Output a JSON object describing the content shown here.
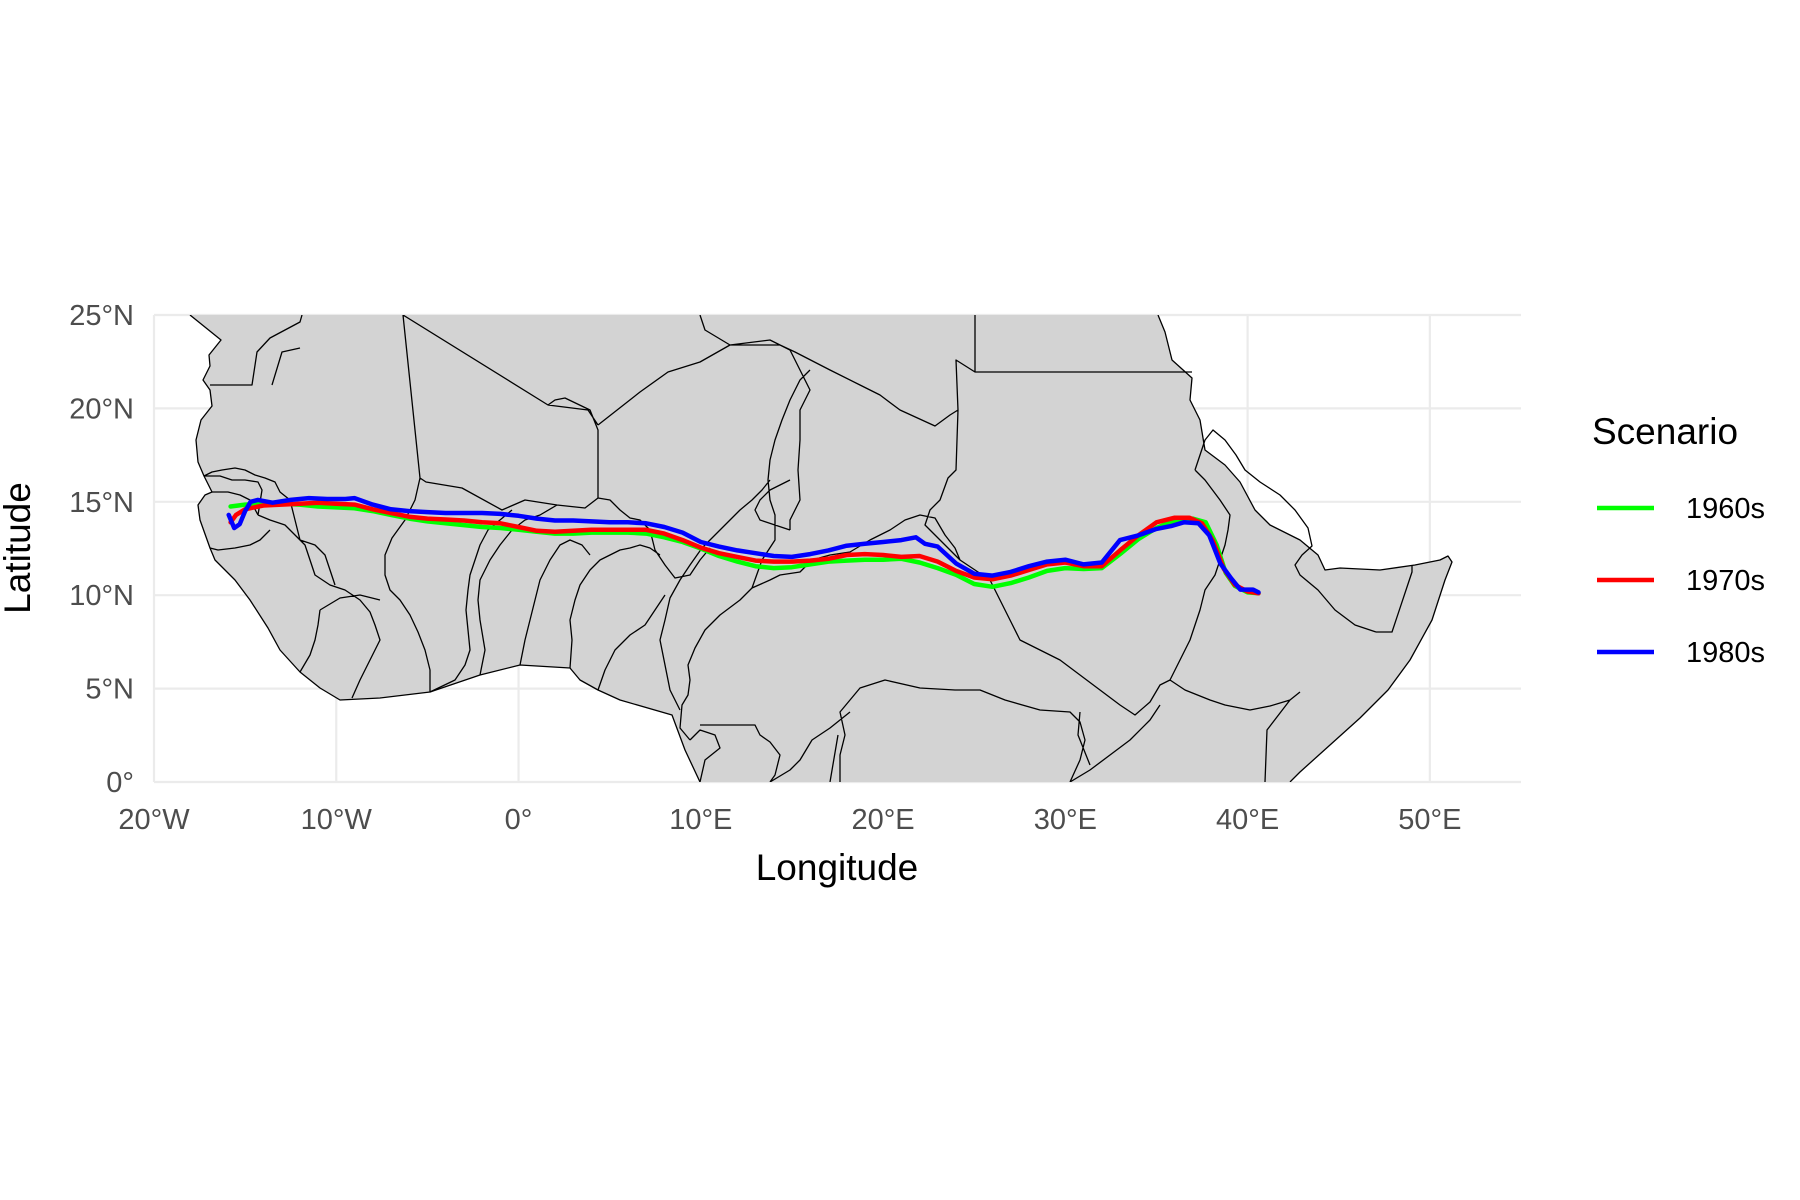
{
  "chart_data": {
    "type": "map",
    "title": "",
    "xlabel": "Longitude",
    "ylabel": "Latitude",
    "xlim": [
      -20,
      55
    ],
    "ylim": [
      0,
      25
    ],
    "x_ticks": [
      {
        "value": -20,
        "label": "20°W"
      },
      {
        "value": -10,
        "label": "10°W"
      },
      {
        "value": 0,
        "label": "0°"
      },
      {
        "value": 10,
        "label": "10°E"
      },
      {
        "value": 20,
        "label": "20°E"
      },
      {
        "value": 30,
        "label": "30°E"
      },
      {
        "value": 40,
        "label": "40°E"
      },
      {
        "value": 50,
        "label": "50°E"
      }
    ],
    "y_ticks": [
      {
        "value": 0,
        "label": "0°"
      },
      {
        "value": 5,
        "label": "5°N"
      },
      {
        "value": 10,
        "label": "10°N"
      },
      {
        "value": 15,
        "label": "15°N"
      },
      {
        "value": 20,
        "label": "20°N"
      },
      {
        "value": 25,
        "label": "25°N"
      }
    ],
    "grid": true,
    "basemap": {
      "land_color": "#d3d3d3",
      "border_color": "#000000"
    },
    "legend": {
      "title": "Scenario",
      "position": "right"
    },
    "series": [
      {
        "name": "1960s",
        "color": "#00ff00",
        "points": [
          [
            -15.8,
            14.75
          ],
          [
            -15,
            14.85
          ],
          [
            -14,
            14.9
          ],
          [
            -13,
            14.9
          ],
          [
            -12,
            14.85
          ],
          [
            -11,
            14.75
          ],
          [
            -10,
            14.7
          ],
          [
            -9,
            14.65
          ],
          [
            -8,
            14.5
          ],
          [
            -7,
            14.3
          ],
          [
            -6,
            14.1
          ],
          [
            -5,
            13.95
          ],
          [
            -4,
            13.85
          ],
          [
            -3,
            13.75
          ],
          [
            -2,
            13.65
          ],
          [
            -1,
            13.6
          ],
          [
            0,
            13.5
          ],
          [
            1,
            13.4
          ],
          [
            2,
            13.3
          ],
          [
            3,
            13.3
          ],
          [
            4,
            13.35
          ],
          [
            5,
            13.35
          ],
          [
            6,
            13.35
          ],
          [
            7,
            13.3
          ],
          [
            8,
            13.1
          ],
          [
            9,
            12.85
          ],
          [
            10,
            12.5
          ],
          [
            11,
            12.1
          ],
          [
            12,
            11.8
          ],
          [
            13,
            11.55
          ],
          [
            14,
            11.45
          ],
          [
            15,
            11.5
          ],
          [
            16,
            11.65
          ],
          [
            17,
            11.8
          ],
          [
            18,
            11.85
          ],
          [
            19,
            11.9
          ],
          [
            20,
            11.9
          ],
          [
            21,
            11.95
          ],
          [
            22,
            11.75
          ],
          [
            23,
            11.45
          ],
          [
            24,
            11.1
          ],
          [
            25,
            10.6
          ],
          [
            26,
            10.45
          ],
          [
            27,
            10.65
          ],
          [
            28,
            10.95
          ],
          [
            29,
            11.3
          ],
          [
            30,
            11.45
          ],
          [
            31,
            11.4
          ],
          [
            32,
            11.45
          ],
          [
            33,
            12.2
          ],
          [
            34,
            13.0
          ],
          [
            35,
            13.6
          ],
          [
            36,
            14.0
          ],
          [
            37,
            14.1
          ],
          [
            37.7,
            13.9
          ],
          [
            38.3,
            12.7
          ],
          [
            38.8,
            11.2
          ],
          [
            39.3,
            10.5
          ],
          [
            40,
            10.15
          ],
          [
            40.6,
            10.1
          ]
        ]
      },
      {
        "name": "1970s",
        "color": "#ff0000",
        "points": [
          [
            -15.8,
            13.9
          ],
          [
            -15.5,
            14.3
          ],
          [
            -15,
            14.6
          ],
          [
            -14,
            14.8
          ],
          [
            -13,
            14.85
          ],
          [
            -12,
            14.9
          ],
          [
            -11,
            14.95
          ],
          [
            -10,
            14.9
          ],
          [
            -9,
            14.85
          ],
          [
            -8,
            14.6
          ],
          [
            -7,
            14.4
          ],
          [
            -6,
            14.2
          ],
          [
            -5,
            14.1
          ],
          [
            -4,
            14.05
          ],
          [
            -3,
            14.0
          ],
          [
            -2,
            13.9
          ],
          [
            -1,
            13.85
          ],
          [
            0,
            13.65
          ],
          [
            1,
            13.45
          ],
          [
            2,
            13.4
          ],
          [
            3,
            13.45
          ],
          [
            4,
            13.5
          ],
          [
            5,
            13.5
          ],
          [
            6,
            13.5
          ],
          [
            7,
            13.5
          ],
          [
            8,
            13.3
          ],
          [
            9,
            12.95
          ],
          [
            10,
            12.55
          ],
          [
            11,
            12.25
          ],
          [
            12,
            12.05
          ],
          [
            13,
            11.85
          ],
          [
            14,
            11.8
          ],
          [
            15,
            11.8
          ],
          [
            16,
            11.85
          ],
          [
            17,
            11.95
          ],
          [
            18,
            12.15
          ],
          [
            19,
            12.2
          ],
          [
            20,
            12.15
          ],
          [
            21,
            12.05
          ],
          [
            22,
            12.1
          ],
          [
            23,
            11.8
          ],
          [
            24,
            11.3
          ],
          [
            25,
            10.95
          ],
          [
            26,
            10.85
          ],
          [
            27,
            11.05
          ],
          [
            28,
            11.35
          ],
          [
            29,
            11.65
          ],
          [
            30,
            11.75
          ],
          [
            31,
            11.55
          ],
          [
            32,
            11.55
          ],
          [
            33,
            12.4
          ],
          [
            34,
            13.2
          ],
          [
            35,
            13.9
          ],
          [
            36,
            14.15
          ],
          [
            36.8,
            14.15
          ],
          [
            37.5,
            13.85
          ],
          [
            38.1,
            12.9
          ],
          [
            38.7,
            11.4
          ],
          [
            39.3,
            10.55
          ],
          [
            40,
            10.2
          ],
          [
            40.6,
            10.1
          ]
        ]
      },
      {
        "name": "1980s",
        "color": "#0000ff",
        "points": [
          [
            -15.9,
            14.3
          ],
          [
            -15.6,
            13.6
          ],
          [
            -15.3,
            13.8
          ],
          [
            -15,
            14.5
          ],
          [
            -14.7,
            15.0
          ],
          [
            -14.3,
            15.1
          ],
          [
            -13.5,
            14.95
          ],
          [
            -12.5,
            15.1
          ],
          [
            -11.5,
            15.2
          ],
          [
            -10.5,
            15.15
          ],
          [
            -9.5,
            15.15
          ],
          [
            -9,
            15.2
          ],
          [
            -8,
            14.85
          ],
          [
            -7,
            14.6
          ],
          [
            -6,
            14.5
          ],
          [
            -5,
            14.45
          ],
          [
            -4,
            14.4
          ],
          [
            -3,
            14.4
          ],
          [
            -2,
            14.4
          ],
          [
            -1,
            14.35
          ],
          [
            0,
            14.25
          ],
          [
            1,
            14.1
          ],
          [
            2,
            14.0
          ],
          [
            3,
            14.0
          ],
          [
            4,
            13.95
          ],
          [
            5,
            13.9
          ],
          [
            6,
            13.9
          ],
          [
            7,
            13.85
          ],
          [
            8,
            13.65
          ],
          [
            9,
            13.35
          ],
          [
            10,
            12.85
          ],
          [
            11,
            12.6
          ],
          [
            12,
            12.4
          ],
          [
            13,
            12.25
          ],
          [
            14,
            12.1
          ],
          [
            15,
            12.05
          ],
          [
            16,
            12.2
          ],
          [
            17,
            12.4
          ],
          [
            18,
            12.65
          ],
          [
            19,
            12.75
          ],
          [
            20,
            12.85
          ],
          [
            21,
            12.95
          ],
          [
            21.8,
            13.1
          ],
          [
            22.3,
            12.75
          ],
          [
            23,
            12.6
          ],
          [
            24,
            11.7
          ],
          [
            25,
            11.15
          ],
          [
            26,
            11.05
          ],
          [
            27,
            11.25
          ],
          [
            28,
            11.55
          ],
          [
            29,
            11.8
          ],
          [
            30,
            11.9
          ],
          [
            31,
            11.65
          ],
          [
            32,
            11.75
          ],
          [
            33,
            12.95
          ],
          [
            34,
            13.2
          ],
          [
            35,
            13.55
          ],
          [
            35.8,
            13.7
          ],
          [
            36.5,
            13.9
          ],
          [
            37.3,
            13.85
          ],
          [
            37.9,
            13.2
          ],
          [
            38.5,
            11.7
          ],
          [
            39.1,
            10.9
          ],
          [
            39.6,
            10.3
          ],
          [
            40.3,
            10.3
          ],
          [
            40.6,
            10.15
          ]
        ]
      }
    ]
  }
}
